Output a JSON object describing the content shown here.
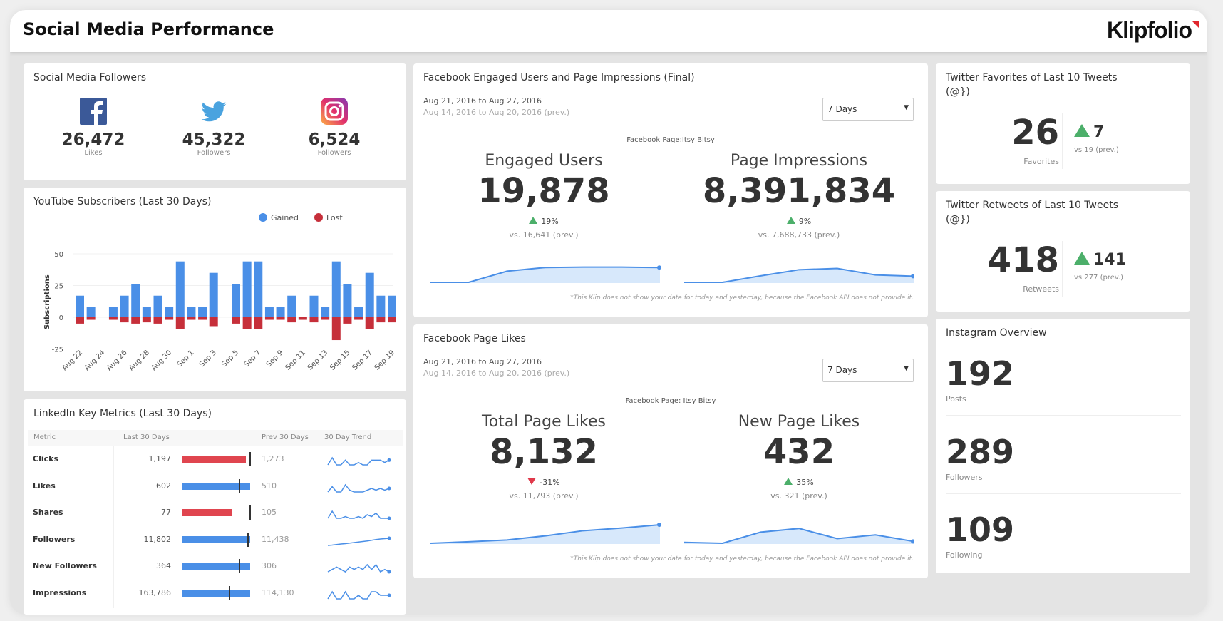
{
  "header": {
    "title": "Social Media Performance",
    "logo": "Klipfolio"
  },
  "followers": {
    "title": "Social Media Followers",
    "items": [
      {
        "icon": "facebook-icon",
        "value": "26,472",
        "label": "Likes",
        "color": "#3b5998"
      },
      {
        "icon": "twitter-icon",
        "value": "45,322",
        "label": "Followers",
        "color": "#4aa3df"
      },
      {
        "icon": "instagram-icon",
        "value": "6,524",
        "label": "Followers",
        "color": "#c13584"
      }
    ]
  },
  "youtube": {
    "title": "YouTube Subscribers (Last 30 Days)"
  },
  "chart_data": {
    "type": "bar",
    "stacked": true,
    "title": "YouTube Subscribers (Last 30 Days)",
    "ylabel": "Subscriptions",
    "ylim": [
      -25,
      50
    ],
    "yticks": [
      50,
      25,
      0,
      -25
    ],
    "grid": true,
    "legend": "top-right",
    "categories": [
      "Aug 22",
      "Aug 23",
      "Aug 24",
      "Aug 25",
      "Aug 26",
      "Aug 27",
      "Aug 28",
      "Aug 29",
      "Aug 30",
      "Aug 31",
      "Sep 1",
      "Sep 2",
      "Sep 3",
      "Sep 4",
      "Sep 5",
      "Sep 6",
      "Sep 7",
      "Sep 8",
      "Sep 9",
      "Sep 10",
      "Sep 11",
      "Sep 12",
      "Sep 13",
      "Sep 14",
      "Sep 15",
      "Sep 16",
      "Sep 17",
      "Sep 18",
      "Sep 19"
    ],
    "xtick_labels": [
      "Aug 22",
      "Aug 24",
      "Aug 26",
      "Aug 28",
      "Aug 30",
      "Sep 1",
      "Sep 3",
      "Sep 5",
      "Sep 7",
      "Sep 9",
      "Sep 11",
      "Sep 13",
      "Sep 15",
      "Sep 17",
      "Sep 19"
    ],
    "series": [
      {
        "name": "Gained",
        "color": "#4a8fe7",
        "values": [
          17,
          8,
          0,
          8,
          17,
          26,
          8,
          17,
          8,
          44,
          8,
          8,
          35,
          0,
          26,
          44,
          44,
          8,
          8,
          17,
          0,
          17,
          8,
          44,
          26,
          8,
          35,
          17,
          17
        ]
      },
      {
        "name": "Lost",
        "color": "#c62f3a",
        "values": [
          -5,
          -2,
          0,
          -2,
          -4,
          -5,
          -4,
          -5,
          -2,
          -9,
          -2,
          -2,
          -7,
          0,
          -5,
          -9,
          -9,
          -2,
          -2,
          -4,
          -2,
          -4,
          -2,
          -18,
          -5,
          -2,
          -9,
          -4,
          -4
        ]
      }
    ]
  },
  "linkedin": {
    "title": "LinkedIn Key Metrics (Last 30 Days)",
    "headers": [
      "Metric",
      "Last 30 Days",
      "Prev 30 Days",
      "30 Day Trend"
    ],
    "rows": [
      {
        "metric": "Clicks",
        "last": "1,197",
        "last_n": 1197,
        "prev": "1,273",
        "prev_n": 1273,
        "trend": [
          2,
          5,
          2,
          2,
          4,
          2,
          2,
          3,
          2,
          2,
          4,
          4,
          4,
          3,
          4
        ]
      },
      {
        "metric": "Likes",
        "last": "602",
        "last_n": 602,
        "prev": "510",
        "prev_n": 510,
        "trend": [
          2,
          5,
          2,
          2,
          6,
          3,
          2,
          2,
          2,
          3,
          4,
          3,
          4,
          3,
          4
        ]
      },
      {
        "metric": "Shares",
        "last": "77",
        "last_n": 77,
        "prev": "105",
        "prev_n": 105,
        "trend": [
          2,
          6,
          2,
          2,
          3,
          2,
          2,
          3,
          2,
          4,
          3,
          5,
          2,
          2,
          2
        ]
      },
      {
        "metric": "Followers",
        "last": "11,802",
        "last_n": 11802,
        "prev": "11,438",
        "prev_n": 11438,
        "trend": [
          1,
          1.2,
          1.5,
          1.8,
          2,
          2.3,
          2.6,
          2.9,
          3.2,
          3.5,
          3.9,
          4.3,
          4.6,
          4.8,
          5
        ]
      },
      {
        "metric": "New Followers",
        "last": "364",
        "last_n": 364,
        "prev": "306",
        "prev_n": 306,
        "trend": [
          2,
          3,
          4,
          3,
          2,
          4,
          3,
          4,
          3,
          5,
          3,
          5,
          2,
          3,
          2
        ]
      },
      {
        "metric": "Impressions",
        "last": "163,786",
        "last_n": 163786,
        "prev": "114,130",
        "prev_n": 114130,
        "trend": [
          2,
          4,
          2,
          2,
          4,
          2,
          2,
          3,
          2,
          2,
          4,
          4,
          3,
          3,
          3
        ]
      }
    ]
  },
  "fb_engaged": {
    "title": "Facebook Engaged Users and Page Impressions (Final)",
    "date_range": "Aug 21, 2016 to Aug 27, 2016",
    "prev_range": "Aug 14, 2016 to Aug 20, 2016 (prev.)",
    "period": "7 Days",
    "page": "Facebook Page:Itsy Bitsy",
    "metrics": [
      {
        "label": "Engaged Users",
        "value": "19,878",
        "change": "19%",
        "direction": "up",
        "prev": "vs. 16,641 (prev.)",
        "trend": [
          0,
          0,
          0.6,
          0.8,
          0.82,
          0.82,
          0.8
        ]
      },
      {
        "label": "Page Impressions",
        "value": "8,391,834",
        "change": "9%",
        "direction": "up",
        "prev": "vs. 7,688,733 (prev.)",
        "trend": [
          0,
          0,
          0.35,
          0.68,
          0.75,
          0.4,
          0.33
        ]
      }
    ],
    "note": "*This Klip does not show your data for today and yesterday, because the Facebook API does not provide it."
  },
  "fb_likes": {
    "title": "Facebook Page Likes",
    "date_range": "Aug 21, 2016 to Aug 27, 2016",
    "prev_range": "Aug 14, 2016 to Aug 20, 2016 (prev.)",
    "period": "7 Days",
    "page": "Facebook Page: Itsy Bitsy",
    "metrics": [
      {
        "label": "Total Page Likes",
        "value": "8,132",
        "change": "-31%",
        "direction": "down",
        "prev": "vs. 11,793 (prev.)",
        "trend": [
          0,
          0.08,
          0.18,
          0.4,
          0.68,
          0.82,
          1
        ]
      },
      {
        "label": "New Page Likes",
        "value": "432",
        "change": "35%",
        "direction": "up",
        "prev": "vs. 321 (prev.)",
        "trend": [
          0.05,
          0,
          0.6,
          0.8,
          0.25,
          0.45,
          0.1
        ]
      }
    ],
    "note": "*This Klip does not show your data for today and yesterday, because the Facebook API does not provide it."
  },
  "tw_fav": {
    "title": "Twitter Favorites of Last 10 Tweets (@})",
    "value": "26",
    "label": "Favorites",
    "change": "7",
    "prev": "vs 19 (prev.)"
  },
  "tw_rt": {
    "title": "Twitter Retweets of Last 10 Tweets (@})",
    "value": "418",
    "label": "Retweets",
    "change": "141",
    "prev": "vs 277 (prev.)"
  },
  "instagram": {
    "title": "Instagram Overview",
    "items": [
      {
        "value": "192",
        "label": "Posts"
      },
      {
        "value": "289",
        "label": "Followers"
      },
      {
        "value": "109",
        "label": "Following"
      }
    ]
  },
  "colors": {
    "up": "#4caf6a",
    "down": "#e0394a",
    "bar_blue": "#4a8fe7",
    "bar_red": "#e0454f",
    "spark": "#4a8fe7",
    "spark_fill": "#d7e8fb"
  }
}
